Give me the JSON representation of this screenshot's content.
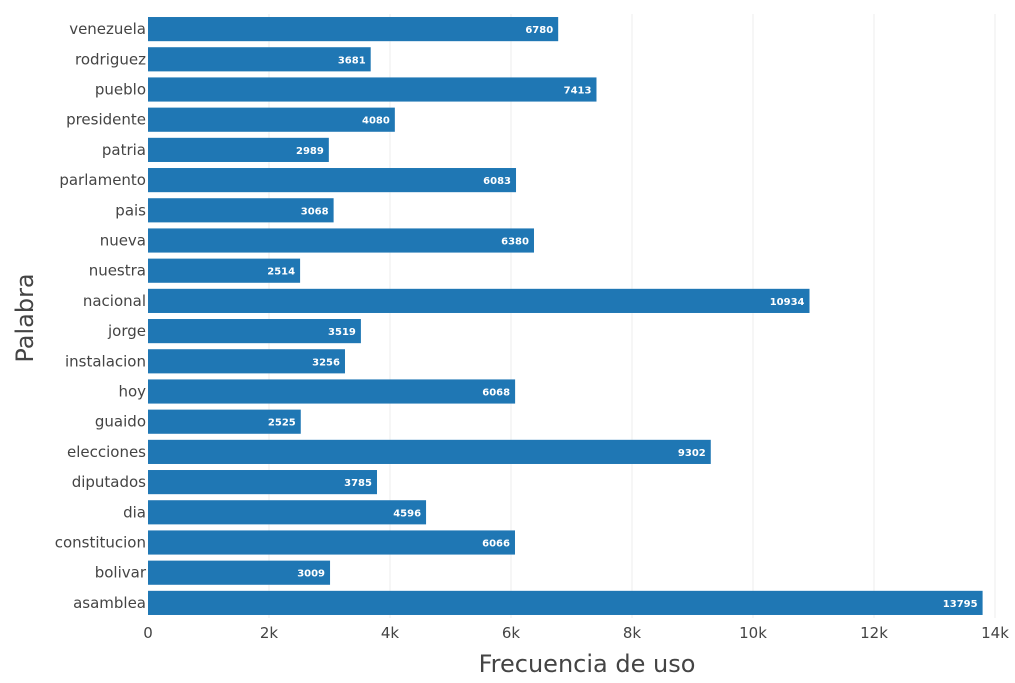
{
  "chart_data": {
    "type": "bar",
    "orientation": "horizontal",
    "title": "",
    "xlabel": "Frecuencia de uso",
    "ylabel": "Palabra",
    "xlim": [
      0,
      14000
    ],
    "xticks": [
      0,
      2000,
      4000,
      6000,
      8000,
      10000,
      12000,
      14000
    ],
    "xtick_labels": [
      "0",
      "2k",
      "4k",
      "6k",
      "8k",
      "10k",
      "12k",
      "14k"
    ],
    "grid": "x",
    "bar_color": "#1f77b4",
    "categories": [
      "venezuela",
      "rodriguez",
      "pueblo",
      "presidente",
      "patria",
      "parlamento",
      "pais",
      "nueva",
      "nuestra",
      "nacional",
      "jorge",
      "instalacion",
      "hoy",
      "guaido",
      "elecciones",
      "diputados",
      "dia",
      "constitucion",
      "bolivar",
      "asamblea"
    ],
    "values": [
      6780,
      3681,
      7413,
      4080,
      2989,
      6083,
      3068,
      6380,
      2514,
      10934,
      3519,
      3256,
      6068,
      2525,
      9302,
      3785,
      4596,
      6066,
      3009,
      13795
    ],
    "value_labels": [
      "6780",
      "3681",
      "7413",
      "4080",
      "2989",
      "6083",
      "3068",
      "6380",
      "2514",
      "10934",
      "3519",
      "3256",
      "6068",
      "2525",
      "9302",
      "3785",
      "4596",
      "6066",
      "3009",
      "13795"
    ]
  }
}
